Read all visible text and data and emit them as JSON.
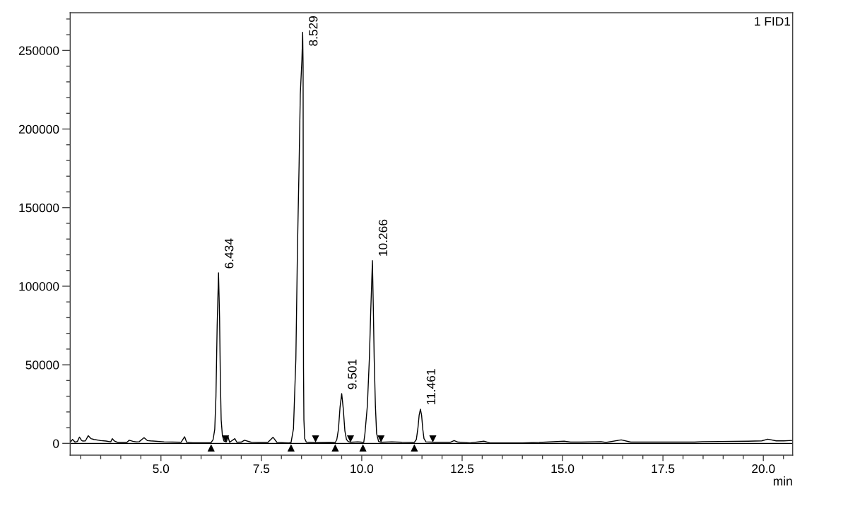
{
  "chart_data": {
    "type": "line",
    "title": "1 FID1",
    "xlabel": "min",
    "xlim": [
      2.74,
      20.73
    ],
    "ylim": [
      -7500,
      274000
    ],
    "xticks": [
      {
        "value": 3,
        "label": null
      },
      {
        "value": 3.5,
        "label": null
      },
      {
        "value": 4,
        "label": null
      },
      {
        "value": 4.5,
        "label": null
      },
      {
        "value": 5,
        "label": "5.0"
      },
      {
        "value": 5.5,
        "label": null
      },
      {
        "value": 6,
        "label": null
      },
      {
        "value": 6.5,
        "label": null
      },
      {
        "value": 7,
        "label": null
      },
      7.5,
      {
        "value": 8,
        "label": null
      },
      {
        "value": 8.5,
        "label": null
      },
      {
        "value": 9,
        "label": null
      },
      {
        "value": 9.5,
        "label": null
      },
      {
        "value": 10,
        "label": "10.0"
      },
      {
        "value": 10.5,
        "label": null
      },
      {
        "value": 11,
        "label": null
      },
      {
        "value": 11.5,
        "label": null
      },
      {
        "value": 12,
        "label": null
      },
      12.5,
      {
        "value": 13,
        "label": null
      },
      {
        "value": 13.5,
        "label": null
      },
      {
        "value": 14,
        "label": null
      },
      {
        "value": 14.5,
        "label": null
      },
      {
        "value": 15,
        "label": "15.0"
      },
      {
        "value": 15.5,
        "label": null
      },
      {
        "value": 16,
        "label": null
      },
      {
        "value": 16.5,
        "label": null
      },
      {
        "value": 17,
        "label": null
      },
      17.5,
      {
        "value": 18,
        "label": null
      },
      {
        "value": 18.5,
        "label": null
      },
      {
        "value": 19,
        "label": null
      },
      {
        "value": 19.5,
        "label": null
      },
      {
        "value": 20,
        "label": "20.0"
      },
      {
        "value": 20.5,
        "label": null
      }
    ],
    "yticks": [
      0,
      {
        "value": 10000,
        "label": null
      },
      {
        "value": 20000,
        "label": null
      },
      {
        "value": 30000,
        "label": null
      },
      {
        "value": 40000,
        "label": null
      },
      50000,
      {
        "value": 60000,
        "label": null
      },
      {
        "value": 70000,
        "label": null
      },
      {
        "value": 80000,
        "label": null
      },
      {
        "value": 90000,
        "label": null
      },
      100000,
      {
        "value": 110000,
        "label": null
      },
      {
        "value": 120000,
        "label": null
      },
      {
        "value": 130000,
        "label": null
      },
      {
        "value": 140000,
        "label": null
      },
      150000,
      {
        "value": 160000,
        "label": null
      },
      {
        "value": 170000,
        "label": null
      },
      {
        "value": 180000,
        "label": null
      },
      {
        "value": 190000,
        "label": null
      },
      200000,
      {
        "value": 210000,
        "label": null
      },
      {
        "value": 220000,
        "label": null
      },
      {
        "value": 230000,
        "label": null
      },
      {
        "value": 240000,
        "label": null
      },
      250000,
      {
        "value": 260000,
        "label": null
      },
      {
        "value": 270000,
        "label": null
      }
    ],
    "ref_lines": [
      {
        "axis": "y",
        "value": 0,
        "color": "#000000"
      }
    ],
    "series": [
      {
        "color": "#000000",
        "line_style": "solid",
        "x": [
          2.74,
          2.8,
          2.86,
          2.92,
          2.97,
          3.02,
          3.05,
          3.12,
          3.19,
          3.26,
          3.33,
          3.5,
          3.63,
          3.75,
          3.79,
          3.84,
          3.92,
          4.15,
          4.21,
          4.3,
          4.39,
          4.46,
          4.58,
          4.66,
          4.74,
          5.08,
          5.5,
          5.59,
          5.64,
          5.79,
          6.0,
          6.25,
          6.3,
          6.34,
          6.37,
          6.4,
          6.434,
          6.46,
          6.48,
          6.5,
          6.53,
          6.57,
          6.63,
          6.67,
          6.71,
          6.84,
          6.89,
          7.0,
          7.08,
          7.25,
          7.43,
          7.66,
          7.79,
          7.89,
          8.18,
          8.24,
          8.3,
          8.36,
          8.4,
          8.44,
          8.47,
          8.51,
          8.529,
          8.54,
          8.545,
          8.55,
          8.56,
          8.58,
          8.62,
          8.85,
          9.2,
          9.34,
          9.38,
          9.42,
          9.46,
          9.501,
          9.54,
          9.58,
          9.62,
          9.66,
          9.72,
          9.9,
          10.05,
          10.08,
          10.14,
          10.19,
          10.224,
          10.266,
          10.29,
          10.31,
          10.34,
          10.37,
          10.42,
          10.48,
          10.75,
          11.0,
          11.31,
          11.36,
          11.4,
          11.43,
          11.461,
          11.49,
          11.52,
          11.55,
          11.6,
          11.8,
          12.2,
          12.3,
          12.4,
          12.7,
          13.04,
          13.19,
          14.0,
          14.42,
          15.04,
          15.2,
          15.47,
          15.96,
          16.08,
          16.46,
          16.7,
          18.29,
          18.48,
          19.62,
          19.96,
          20.11,
          20.32,
          20.51,
          20.73
        ],
        "values": [
          700,
          2500,
          800,
          1200,
          4000,
          2000,
          1500,
          1600,
          4900,
          3000,
          2500,
          1800,
          1500,
          1000,
          3000,
          1500,
          600,
          600,
          2000,
          1300,
          1000,
          1100,
          3600,
          1800,
          1600,
          1000,
          700,
          4200,
          700,
          400,
          400,
          500,
          2500,
          9000,
          30000,
          75000,
          108500,
          80000,
          40000,
          15000,
          5000,
          1500,
          1000,
          4300,
          700,
          3000,
          700,
          800,
          2000,
          700,
          600,
          600,
          3900,
          600,
          300,
          500,
          9300,
          54000,
          124600,
          177000,
          222000,
          244000,
          261600,
          240000,
          120000,
          48000,
          15000,
          3000,
          800,
          500,
          600,
          500,
          2500,
          9000,
          23000,
          31700,
          22000,
          8000,
          2500,
          1200,
          700,
          1000,
          600,
          6300,
          24000,
          54000,
          84000,
          116300,
          84000,
          54000,
          24000,
          6300,
          1200,
          700,
          1000,
          700,
          600,
          2500,
          10000,
          18000,
          21800,
          18000,
          9000,
          3000,
          1000,
          700,
          700,
          1800,
          800,
          300,
          1400,
          300,
          300,
          600,
          1400,
          800,
          800,
          1100,
          600,
          2200,
          800,
          800,
          1100,
          1400,
          1600,
          2700,
          1600,
          1600,
          1900
        ]
      },
      {
        "type": "scatter",
        "color": "#000000",
        "marker": "triangle",
        "x": [
          6.25,
          8.24,
          9.34,
          10.03,
          11.31
        ],
        "values": [
          -3000,
          -3000,
          -3000,
          -3000,
          -3000
        ]
      },
      {
        "type": "scatter",
        "color": "#000000",
        "marker": "triangle",
        "x": [
          6.61,
          8.85,
          9.72,
          10.48,
          11.77
        ],
        "values": [
          3000,
          3000,
          3000,
          3000,
          3000
        ]
      }
    ],
    "annotations": [
      {
        "text": "6.434",
        "x": 6.434,
        "y": 108500
      },
      {
        "text": "8.529",
        "x": 8.529,
        "y": 261600
      },
      {
        "text": "9.501",
        "x": 9.501,
        "y": 31700
      },
      {
        "text": "10.266",
        "x": 10.266,
        "y": 116300
      },
      {
        "text": "11.461",
        "x": 11.461,
        "y": 21800
      }
    ]
  }
}
